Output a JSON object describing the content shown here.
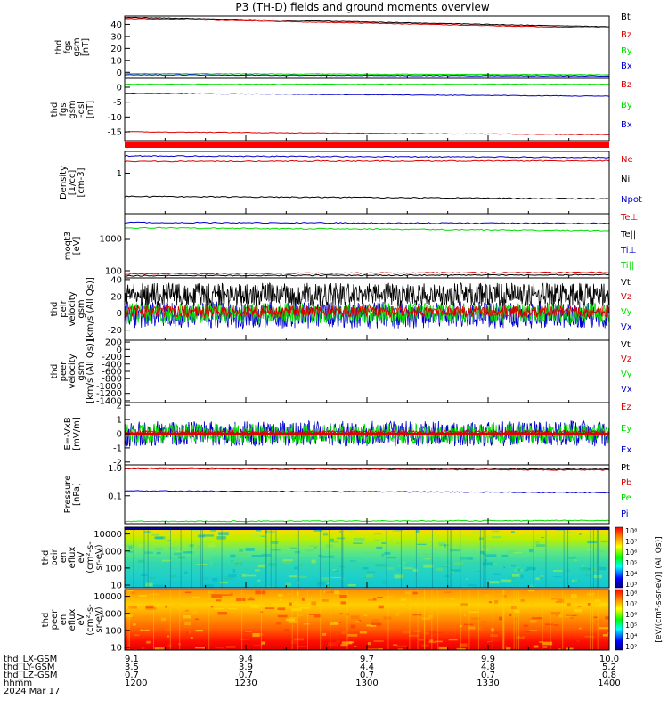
{
  "title": "P3 (TH-D) fields and ground moments overview",
  "footer": {
    "rows": [
      {
        "label": "thd_LX-GSM",
        "values": [
          "9.1",
          "9.4",
          "9.7",
          "9.9",
          "10.0"
        ]
      },
      {
        "label": "thd_LY-GSM",
        "values": [
          "3.5",
          "3.9",
          "4.4",
          "4.8",
          "5.2"
        ]
      },
      {
        "label": "thd_LZ-GSM",
        "values": [
          "0.7",
          "0.7",
          "0.7",
          "0.7",
          "0.8"
        ]
      },
      {
        "label": "hhmm",
        "values": [
          "1200",
          "1230",
          "1300",
          "1330",
          "1400"
        ]
      }
    ],
    "date": "2024 Mar 17"
  },
  "colorbar": {
    "ion_ticks": [
      "10⁸",
      "10⁷",
      "10⁶",
      "10⁵",
      "10⁴",
      "10³"
    ],
    "elec_ticks": [
      "10⁸",
      "10⁷",
      "10⁶",
      "10⁵",
      "10⁴",
      "10²"
    ],
    "label": "[eV/(cm²-s-sr-eV)] (All Qs)]"
  },
  "colors": {
    "black": "#000000",
    "red": "#dd0000",
    "green": "#00dd00",
    "blue": "#0000cc"
  },
  "chart_data": [
    {
      "type": "line",
      "panel": "fgs_gsm",
      "ylabel": [
        "thd",
        "fgs",
        "gsm",
        "[nT]"
      ],
      "yticks": [
        "0",
        "10",
        "20",
        "30",
        "40"
      ],
      "ylim": [
        -5,
        47
      ],
      "legend": [
        "Bt",
        "Bz",
        "By",
        "Bx"
      ],
      "series": [
        {
          "name": "Bt",
          "color": "#000000",
          "start": 46,
          "end": 38
        },
        {
          "name": "Bz",
          "color": "#dd0000",
          "start": 45,
          "end": 37
        },
        {
          "name": "By",
          "color": "#00dd00",
          "start": -1,
          "end": -2
        },
        {
          "name": "Bx",
          "color": "#0000cc",
          "start": -2,
          "end": -3
        }
      ]
    },
    {
      "type": "line",
      "panel": "fgs_gsm_dsl",
      "ylabel": [
        "thd",
        "fgs",
        "gsm",
        "-dsl",
        "[nT]"
      ],
      "yticks": [
        "0",
        "-5",
        "-10",
        "-15"
      ],
      "ylim": [
        -18,
        3
      ],
      "legend": [
        "Bz",
        "By",
        "Bx"
      ],
      "series": [
        {
          "name": "Bz",
          "color": "#dd0000",
          "start": -15,
          "end": -16
        },
        {
          "name": "By",
          "color": "#00dd00",
          "start": 1,
          "end": 1
        },
        {
          "name": "Bx",
          "color": "#0000cc",
          "start": -2,
          "end": -3
        }
      ]
    },
    {
      "type": "line",
      "panel": "density",
      "ylabel": [
        "Density",
        "[1/cc]",
        "[cm-3]"
      ],
      "yticks": [
        "1"
      ],
      "ylim": [
        0.05,
        5
      ],
      "scale": "log",
      "legend": [
        "Ne",
        "Ni",
        "Npot"
      ],
      "series": [
        {
          "name": "Ne",
          "color": "#dd0000",
          "start": 2.4,
          "end": 2.5
        },
        {
          "name": "Ni",
          "color": "#000000",
          "start": 0.18,
          "end": 0.15
        },
        {
          "name": "Npot",
          "color": "#0000cc",
          "start": 3.6,
          "end": 3.2
        }
      ]
    },
    {
      "type": "line",
      "panel": "temperature",
      "ylabel": [
        "moqt3",
        "[eV]"
      ],
      "yticks": [
        "1000",
        "100"
      ],
      "ylim": [
        60,
        6000
      ],
      "scale": "log",
      "legend": [
        "Te⊥",
        "Te||",
        "Ti⊥",
        "Ti||"
      ],
      "series": [
        {
          "name": "Te⊥",
          "color": "#dd0000",
          "start": 80,
          "end": 90
        },
        {
          "name": "Te||",
          "color": "#000000",
          "start": 70,
          "end": 75
        },
        {
          "name": "Ti⊥",
          "color": "#0000cc",
          "start": 3200,
          "end": 3000
        },
        {
          "name": "Ti||",
          "color": "#00dd00",
          "start": 2200,
          "end": 1800
        }
      ]
    },
    {
      "type": "line",
      "panel": "ion_velocity",
      "ylabel": [
        "thd",
        "peir",
        "velocity",
        "gsm",
        "[km/s (All Qs)]"
      ],
      "yticks": [
        "40",
        "20",
        "0",
        "-20"
      ],
      "ylim": [
        -32,
        42
      ],
      "legend": [
        "Vt",
        "Vz",
        "Vy",
        "Vx"
      ]
    },
    {
      "type": "line",
      "panel": "elec_velocity",
      "ylabel": [
        "thd",
        "peer",
        "velocity",
        "gsm",
        "[km/s (All Qs)]"
      ],
      "yticks": [
        "200",
        "0",
        "-200",
        "-400",
        "-600",
        "-800",
        "-1000",
        "-1200",
        "-1400"
      ],
      "ylim": [
        -1450,
        250
      ],
      "legend": [
        "Vt",
        "Vz",
        "Vy",
        "Vx"
      ]
    },
    {
      "type": "line",
      "panel": "efield",
      "ylabel": [
        "E=-VxB",
        "[mV/m]"
      ],
      "yticks": [
        "2",
        "1",
        "0",
        "-1",
        "-2"
      ],
      "ylim": [
        -2.2,
        2.2
      ],
      "legend": [
        "Ez",
        "Ey",
        "Ex"
      ]
    },
    {
      "type": "line",
      "panel": "pressure",
      "ylabel": [
        "Pressure",
        "[nPa]"
      ],
      "yticks": [
        "1.0",
        "0.1"
      ],
      "ylim": [
        0.01,
        1.3
      ],
      "scale": "log",
      "legend": [
        "Pt",
        "Pb",
        "Pe",
        "Pi"
      ],
      "series": [
        {
          "name": "Pt",
          "color": "#000000",
          "start": 1.0,
          "end": 0.9
        },
        {
          "name": "Pb",
          "color": "#dd0000",
          "start": 0.95,
          "end": 0.85
        },
        {
          "name": "Pe",
          "color": "#00dd00",
          "start": 0.012,
          "end": 0.013
        },
        {
          "name": "Pi",
          "color": "#0000cc",
          "start": 0.15,
          "end": 0.13
        }
      ]
    },
    {
      "type": "heatmap",
      "panel": "ion_spectrogram",
      "ylabel": [
        "thd",
        "peir",
        "en",
        "eflux",
        "eV",
        "(cm²-s-",
        "sr-eV)"
      ],
      "yticks": [
        "10000",
        "1000",
        "100",
        "10"
      ],
      "ylim": [
        7,
        25000
      ],
      "scale": "log"
    },
    {
      "type": "heatmap",
      "panel": "elec_spectrogram",
      "ylabel": [
        "thd",
        "peer",
        "en",
        "eflux",
        "eV",
        "(cm²-s-",
        "sr-eV)"
      ],
      "yticks": [
        "10000",
        "1000",
        "100",
        "10"
      ],
      "ylim": [
        7,
        25000
      ],
      "scale": "log"
    }
  ]
}
